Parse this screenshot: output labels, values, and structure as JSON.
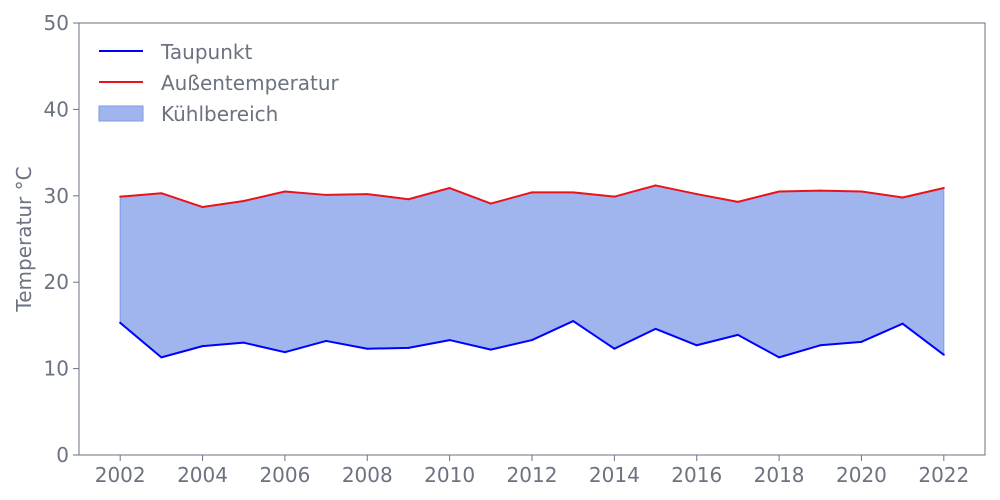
{
  "chart_data": {
    "type": "area",
    "title": "",
    "xlabel": "",
    "ylabel": "Temperatur °C",
    "ylim": [
      0,
      50
    ],
    "xlim": [
      2001,
      2023
    ],
    "x_ticks": [
      "2002",
      "2004",
      "2006",
      "2008",
      "2010",
      "2012",
      "2014",
      "2016",
      "2018",
      "2020",
      "2022"
    ],
    "y_ticks": [
      "0",
      "10",
      "20",
      "30",
      "40",
      "50"
    ],
    "grid": false,
    "legend_position": "top-left",
    "x": [
      2002,
      2003,
      2004,
      2005,
      2006,
      2007,
      2008,
      2009,
      2010,
      2011,
      2012,
      2013,
      2014,
      2015,
      2016,
      2017,
      2018,
      2019,
      2020,
      2021,
      2022
    ],
    "series": [
      {
        "name": "Taupunkt",
        "color": "#0000ff",
        "values": [
          15.3,
          11.3,
          12.6,
          13.0,
          11.9,
          13.2,
          12.3,
          12.4,
          13.3,
          12.2,
          13.3,
          15.5,
          12.3,
          14.6,
          12.7,
          13.9,
          11.3,
          12.7,
          13.1,
          15.2,
          11.6
        ]
      },
      {
        "name": "Außentemperatur",
        "color": "#e8141b",
        "values": [
          29.9,
          30.3,
          28.7,
          29.4,
          30.5,
          30.1,
          30.2,
          29.6,
          30.9,
          29.1,
          30.4,
          30.4,
          29.9,
          31.2,
          30.2,
          29.3,
          30.5,
          30.6,
          30.5,
          29.8,
          30.9
        ]
      }
    ],
    "fill": {
      "name": "Kühlbereich",
      "between": [
        "Taupunkt",
        "Außentemperatur"
      ],
      "color": "#a0b4ee",
      "edge_color": "#7f9ae6"
    }
  }
}
